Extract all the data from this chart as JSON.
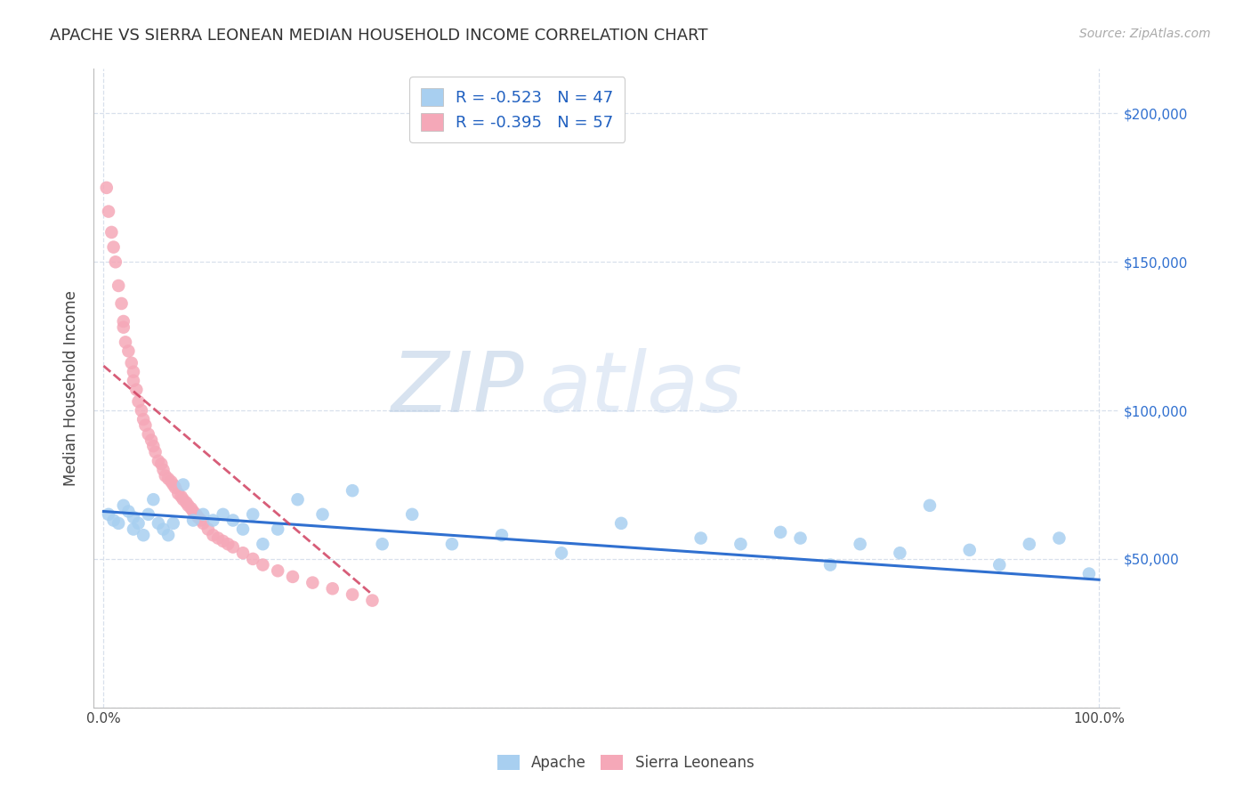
{
  "title": "APACHE VS SIERRA LEONEAN MEDIAN HOUSEHOLD INCOME CORRELATION CHART",
  "source": "Source: ZipAtlas.com",
  "ylabel": "Median Household Income",
  "ylim": [
    0,
    215000
  ],
  "xlim": [
    -0.01,
    1.02
  ],
  "apache_R": "-0.523",
  "apache_N": "47",
  "sierra_R": "-0.395",
  "sierra_N": "57",
  "apache_color": "#a8cff0",
  "sierra_color": "#f5a8b8",
  "apache_line_color": "#3070d0",
  "sierra_line_color": "#d04060",
  "watermark_zip": "ZIP",
  "watermark_atlas": "atlas",
  "apache_points_x": [
    0.005,
    0.01,
    0.015,
    0.02,
    0.025,
    0.03,
    0.03,
    0.035,
    0.04,
    0.045,
    0.05,
    0.055,
    0.06,
    0.065,
    0.07,
    0.08,
    0.09,
    0.1,
    0.11,
    0.12,
    0.13,
    0.14,
    0.15,
    0.16,
    0.175,
    0.195,
    0.22,
    0.25,
    0.28,
    0.31,
    0.35,
    0.4,
    0.46,
    0.52,
    0.6,
    0.64,
    0.68,
    0.7,
    0.73,
    0.76,
    0.8,
    0.83,
    0.87,
    0.9,
    0.93,
    0.96,
    0.99
  ],
  "apache_points_y": [
    65000,
    63000,
    62000,
    68000,
    66000,
    64000,
    60000,
    62000,
    58000,
    65000,
    70000,
    62000,
    60000,
    58000,
    62000,
    75000,
    63000,
    65000,
    63000,
    65000,
    63000,
    60000,
    65000,
    55000,
    60000,
    70000,
    65000,
    73000,
    55000,
    65000,
    55000,
    58000,
    52000,
    62000,
    57000,
    55000,
    59000,
    57000,
    48000,
    55000,
    52000,
    68000,
    53000,
    48000,
    55000,
    57000,
    45000
  ],
  "sierra_points_x": [
    0.003,
    0.005,
    0.008,
    0.01,
    0.012,
    0.015,
    0.018,
    0.02,
    0.02,
    0.022,
    0.025,
    0.028,
    0.03,
    0.03,
    0.033,
    0.035,
    0.038,
    0.04,
    0.042,
    0.045,
    0.048,
    0.05,
    0.052,
    0.055,
    0.058,
    0.06,
    0.062,
    0.065,
    0.068,
    0.07,
    0.072,
    0.075,
    0.078,
    0.08,
    0.083,
    0.085,
    0.088,
    0.09,
    0.093,
    0.095,
    0.098,
    0.1,
    0.105,
    0.11,
    0.115,
    0.12,
    0.125,
    0.13,
    0.14,
    0.15,
    0.16,
    0.175,
    0.19,
    0.21,
    0.23,
    0.25,
    0.27
  ],
  "sierra_points_y": [
    175000,
    167000,
    160000,
    155000,
    150000,
    142000,
    136000,
    130000,
    128000,
    123000,
    120000,
    116000,
    113000,
    110000,
    107000,
    103000,
    100000,
    97000,
    95000,
    92000,
    90000,
    88000,
    86000,
    83000,
    82000,
    80000,
    78000,
    77000,
    76000,
    75000,
    74000,
    72000,
    71000,
    70000,
    69000,
    68000,
    67000,
    66000,
    65000,
    64000,
    63000,
    62000,
    60000,
    58000,
    57000,
    56000,
    55000,
    54000,
    52000,
    50000,
    48000,
    46000,
    44000,
    42000,
    40000,
    38000,
    36000
  ],
  "apache_line_x": [
    0.0,
    1.0
  ],
  "apache_line_y": [
    66000,
    43000
  ],
  "sierra_line_x": [
    0.0,
    0.27
  ],
  "sierra_line_y": [
    115000,
    38000
  ],
  "ytick_positions": [
    0,
    50000,
    100000,
    150000,
    200000
  ],
  "xtick_positions": [
    0.0,
    1.0
  ],
  "xtick_labels": [
    "0.0%",
    "100.0%"
  ],
  "grid_color": "#d8e0ec",
  "background_color": "#ffffff",
  "title_fontsize": 13,
  "source_fontsize": 10,
  "tick_fontsize": 11,
  "legend_fontsize": 13
}
